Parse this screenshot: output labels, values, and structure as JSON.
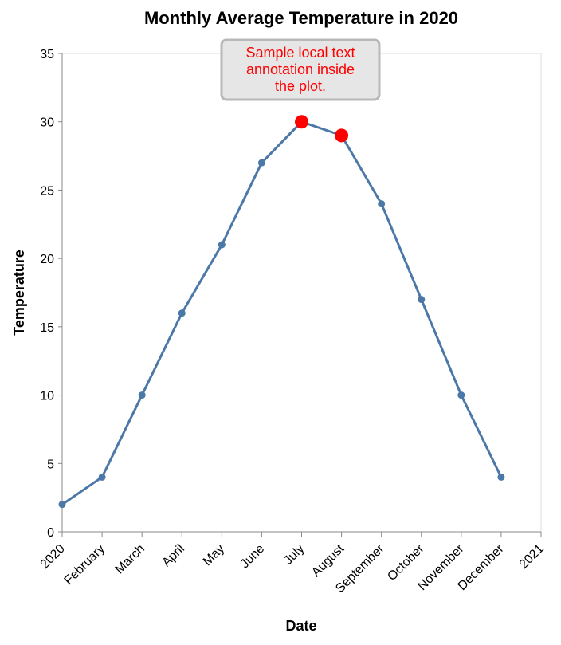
{
  "chart_data": {
    "type": "line",
    "title": "Monthly Average Temperature in 2020",
    "xlabel": "Date",
    "ylabel": "Temperature",
    "ylim": [
      0,
      35
    ],
    "y_ticks": [
      0,
      5,
      10,
      15,
      20,
      25,
      30,
      35
    ],
    "x_ticks": [
      "2020",
      "February",
      "March",
      "April",
      "May",
      "June",
      "July",
      "August",
      "September",
      "October",
      "November",
      "December",
      "2021"
    ],
    "x": [
      "2020-01",
      "2020-02",
      "2020-03",
      "2020-04",
      "2020-05",
      "2020-06",
      "2020-07",
      "2020-08",
      "2020-09",
      "2020-10",
      "2020-11",
      "2020-12"
    ],
    "series": [
      {
        "values": [
          2,
          4,
          10,
          16,
          21,
          27,
          30,
          29,
          24,
          17,
          10,
          4
        ],
        "color": "#4c78a8"
      }
    ],
    "highlighted_points": [
      {
        "x": "2020-07",
        "y": 30,
        "color": "#ff0000"
      },
      {
        "x": "2020-08",
        "y": 29,
        "color": "#ff0000"
      }
    ],
    "annotation": {
      "lines": [
        "Sample local text",
        "annotation inside",
        "the plot."
      ],
      "color": "#ff0000"
    },
    "grid": false
  }
}
